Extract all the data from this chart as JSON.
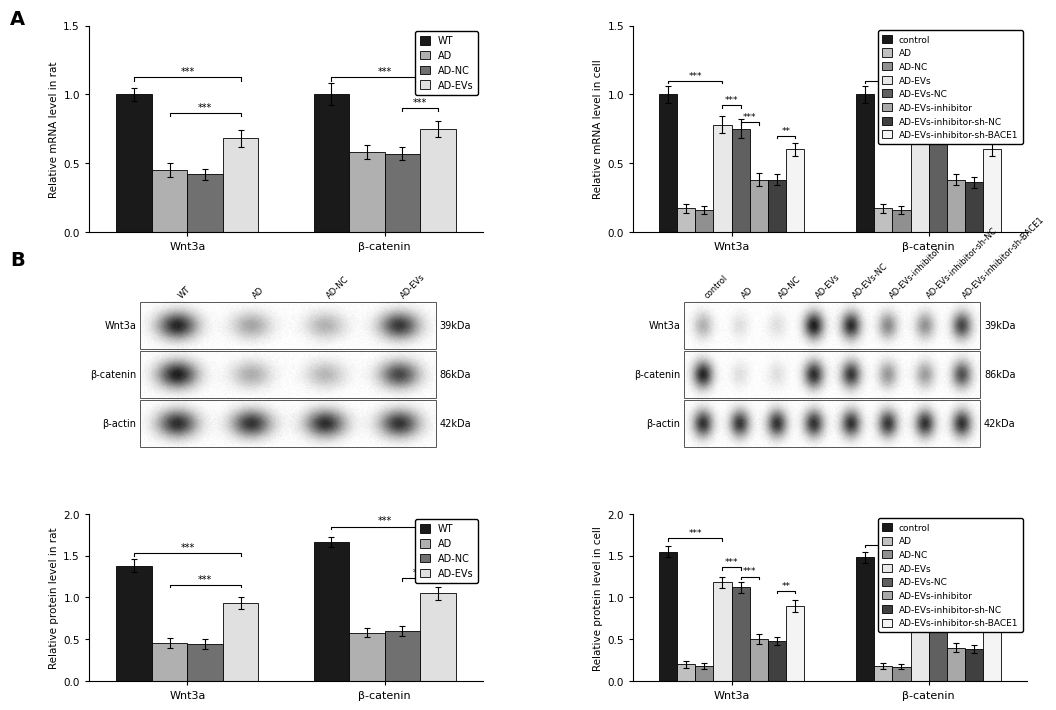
{
  "panel_A_left": {
    "ylabel": "Relative mRNA level in rat",
    "ylim": [
      0,
      1.5
    ],
    "yticks": [
      0.0,
      0.5,
      1.0,
      1.5
    ],
    "groups": [
      "Wnt3a",
      "β-catenin"
    ],
    "categories": [
      "WT",
      "AD",
      "AD-NC",
      "AD-EVs"
    ],
    "values": {
      "Wnt3a": [
        1.0,
        0.45,
        0.42,
        0.68
      ],
      "β-catenin": [
        1.0,
        0.58,
        0.57,
        0.75
      ]
    },
    "errors": {
      "Wnt3a": [
        0.05,
        0.05,
        0.04,
        0.06
      ],
      "β-catenin": [
        0.08,
        0.05,
        0.05,
        0.06
      ]
    }
  },
  "panel_A_right": {
    "ylabel": "Relative mRNA level in cell",
    "ylim": [
      0,
      1.5
    ],
    "yticks": [
      0.0,
      0.5,
      1.0,
      1.5
    ],
    "groups": [
      "Wnt3a",
      "β-catenin"
    ],
    "categories": [
      "control",
      "AD",
      "AD-NC",
      "AD-EVs",
      "AD-EVs-NC",
      "AD-EVs-inhibitor",
      "AD-EVs-inhibitor-sh-NC",
      "AD-EVs-inhibitor-sh-BACE1"
    ],
    "values": {
      "Wnt3a": [
        1.0,
        0.17,
        0.16,
        0.78,
        0.75,
        0.38,
        0.38,
        0.6
      ],
      "β-catenin": [
        1.0,
        0.17,
        0.16,
        0.8,
        0.8,
        0.38,
        0.36,
        0.6
      ]
    },
    "errors": {
      "Wnt3a": [
        0.06,
        0.03,
        0.03,
        0.06,
        0.07,
        0.05,
        0.04,
        0.05
      ],
      "β-catenin": [
        0.06,
        0.03,
        0.03,
        0.05,
        0.06,
        0.04,
        0.04,
        0.05
      ]
    }
  },
  "panel_B_left_bar": {
    "ylabel": "Relative protein level in rat",
    "ylim": [
      0,
      2.0
    ],
    "yticks": [
      0.0,
      0.5,
      1.0,
      1.5,
      2.0
    ],
    "groups": [
      "Wnt3a",
      "β-catenin"
    ],
    "categories": [
      "WT",
      "AD",
      "AD-NC",
      "AD-EVs"
    ],
    "values": {
      "Wnt3a": [
        1.38,
        0.46,
        0.44,
        0.93
      ],
      "β-catenin": [
        1.67,
        0.58,
        0.6,
        1.05
      ]
    },
    "errors": {
      "Wnt3a": [
        0.08,
        0.06,
        0.06,
        0.07
      ],
      "β-catenin": [
        0.06,
        0.05,
        0.06,
        0.08
      ]
    }
  },
  "panel_B_right_bar": {
    "ylabel": "Relative protein level in cell",
    "ylim": [
      0,
      2.0
    ],
    "yticks": [
      0.0,
      0.5,
      1.0,
      1.5,
      2.0
    ],
    "groups": [
      "Wnt3a",
      "β-catenin"
    ],
    "categories": [
      "control",
      "AD",
      "AD-NC",
      "AD-EVs",
      "AD-EVs-NC",
      "AD-EVs-inhibitor",
      "AD-EVs-inhibitor-sh-NC",
      "AD-EVs-inhibitor-sh-BACE1"
    ],
    "values": {
      "Wnt3a": [
        1.55,
        0.2,
        0.18,
        1.18,
        1.12,
        0.5,
        0.48,
        0.9
      ],
      "β-catenin": [
        1.48,
        0.18,
        0.17,
        1.1,
        1.08,
        0.4,
        0.38,
        0.78
      ]
    },
    "errors": {
      "Wnt3a": [
        0.07,
        0.04,
        0.04,
        0.07,
        0.07,
        0.06,
        0.05,
        0.07
      ],
      "β-catenin": [
        0.07,
        0.04,
        0.03,
        0.07,
        0.06,
        0.05,
        0.05,
        0.07
      ]
    }
  },
  "legend_left": [
    "WT",
    "AD",
    "AD-NC",
    "AD-EVs"
  ],
  "legend_right": [
    "control",
    "AD",
    "AD-NC",
    "AD-EVs",
    "AD-EVs-NC",
    "AD-EVs-inhibitor",
    "AD-EVs-inhibitor-sh-NC",
    "AD-EVs-inhibitor-sh-BACE1"
  ],
  "colors_left": [
    "#1a1a1a",
    "#b0b0b0",
    "#707070",
    "#e0e0e0"
  ],
  "colors_right": [
    "#1a1a1a",
    "#c0c0c0",
    "#909090",
    "#e8e8e8",
    "#606060",
    "#a8a8a8",
    "#404040",
    "#f4f4f4"
  ],
  "background_color": "#ffffff",
  "wb_labels": [
    "Wnt3a",
    "β-catenin",
    "β-actin"
  ],
  "wb_kda": [
    "39kDa",
    "86kDa",
    "42kDa"
  ],
  "wb_col_labels_left": [
    "WT",
    "AD",
    "AD-NC",
    "AD-EVs"
  ],
  "wb_col_labels_right": [
    "control",
    "AD",
    "AD-NC",
    "AD-EVs",
    "AD-EVs-NC",
    "AD-EVs-inhibitor",
    "AD-EVs-inhibitor-sh-NC",
    "AD-EVs-inhibitor-sh-BACE1"
  ],
  "wb_bands_left": {
    "Wnt3a": [
      0.85,
      0.35,
      0.3,
      0.78
    ],
    "beta_cat": [
      0.88,
      0.32,
      0.28,
      0.72
    ],
    "beta_act": [
      0.82,
      0.8,
      0.82,
      0.8
    ]
  },
  "wb_bands_right": {
    "Wnt3a": [
      0.3,
      0.12,
      0.12,
      0.88,
      0.82,
      0.45,
      0.42,
      0.72
    ],
    "beta_cat": [
      0.85,
      0.12,
      0.12,
      0.82,
      0.78,
      0.4,
      0.38,
      0.68
    ],
    "beta_act": [
      0.8,
      0.78,
      0.8,
      0.8,
      0.8,
      0.78,
      0.8,
      0.8
    ]
  }
}
